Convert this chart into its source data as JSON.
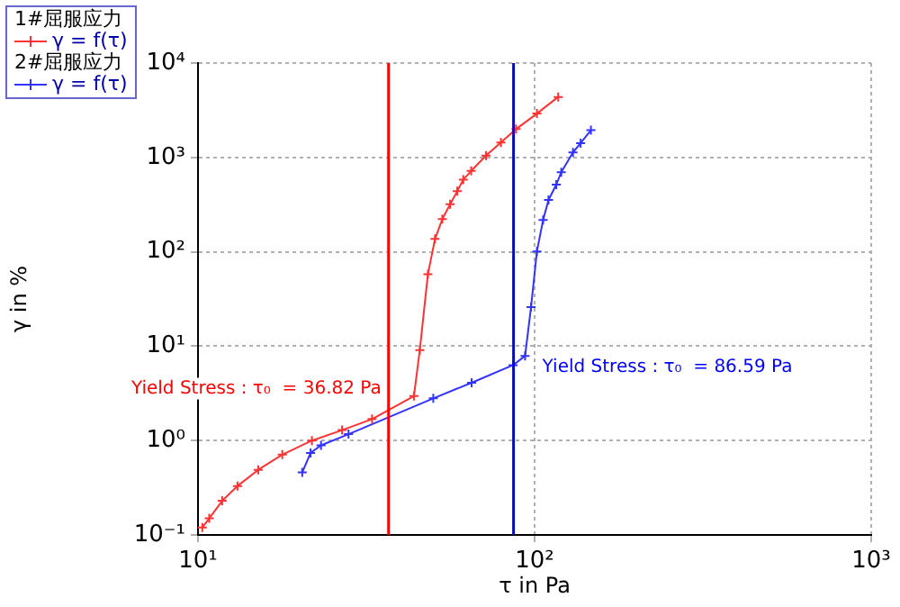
{
  "chart_data": {
    "type": "line",
    "xlabel": "τ in Pa",
    "ylabel": "γ in %",
    "log": "xy",
    "xlim": [
      10,
      1000
    ],
    "ylim": [
      0.1,
      10000
    ],
    "xticks": [
      {
        "value": 10,
        "label": "10¹"
      },
      {
        "value": 100,
        "label": "10²"
      },
      {
        "value": 1000,
        "label": "10³"
      }
    ],
    "yticks": [
      {
        "value": 0.1,
        "label": "10⁻¹"
      },
      {
        "value": 1,
        "label": "10⁰"
      },
      {
        "value": 10,
        "label": "10¹"
      },
      {
        "value": 100,
        "label": "10²"
      },
      {
        "value": 1000,
        "label": "10³"
      },
      {
        "value": 10000,
        "label": "10⁴"
      }
    ],
    "grid": true,
    "legend": "top left",
    "marker": "cross",
    "line_style": "solid",
    "series": [
      {
        "name": "γ = f(τ)",
        "color": "#ff3333",
        "x": [
          10.3,
          10.8,
          11.8,
          13.1,
          15.1,
          17.8,
          21.8,
          26.8,
          32.9,
          43.8,
          45.6,
          48.2,
          50.6,
          53.2,
          56.1,
          58.9,
          61.4,
          64.8,
          71.7,
          79.4,
          88.1,
          101.6,
          117.5
        ],
        "values": [
          0.12,
          0.15,
          0.23,
          0.33,
          0.49,
          0.71,
          1.0,
          1.29,
          1.69,
          2.96,
          9.1,
          58,
          137,
          222,
          319,
          438,
          582,
          719,
          1047,
          1435,
          1995,
          2917,
          4375
        ]
      },
      {
        "name": "γ = f(τ)",
        "color": "#3333ff",
        "x": [
          20.4,
          21.6,
          23.2,
          28,
          50,
          65,
          86.3,
          93.7,
          97.6,
          101.6,
          106,
          110,
          116,
          120,
          130,
          137,
          147
        ],
        "values": [
          0.46,
          0.74,
          0.89,
          1.17,
          2.8,
          4.1,
          6.3,
          7.9,
          26,
          101,
          218,
          354,
          515,
          697,
          1130,
          1416,
          1941
        ]
      }
    ],
    "ref_lines": [
      {
        "axis": "x",
        "value": 36.82,
        "label": "Yield Stress : τ₀  = 36.82 Pa",
        "color": "#ff0000"
      },
      {
        "axis": "x",
        "value": 86.59,
        "label": "Yield Stress : τ₀  = 86.59 Pa",
        "color": "#0000ff"
      }
    ],
    "annotations": [
      "1#屈服应力",
      "2#屈服应力"
    ]
  }
}
